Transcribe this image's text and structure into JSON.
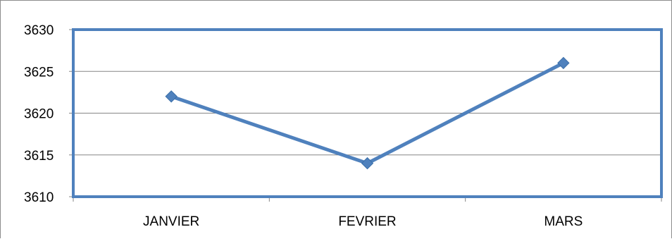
{
  "chart_data": {
    "type": "line",
    "categories": [
      "JANVIER",
      "FEVRIER",
      "MARS"
    ],
    "series": [
      {
        "values": [
          3622,
          3614,
          3626
        ],
        "color": "#4f81bd",
        "marker": "diamond"
      }
    ],
    "title": "",
    "xlabel": "",
    "ylabel": "",
    "ylim": [
      3610,
      3630
    ],
    "yticks": [
      "3610",
      "3615",
      "3620",
      "3625",
      "3630"
    ],
    "grid": true,
    "legend": "none",
    "plot_border_color": "#4f81bd",
    "grid_color": "#868686"
  }
}
